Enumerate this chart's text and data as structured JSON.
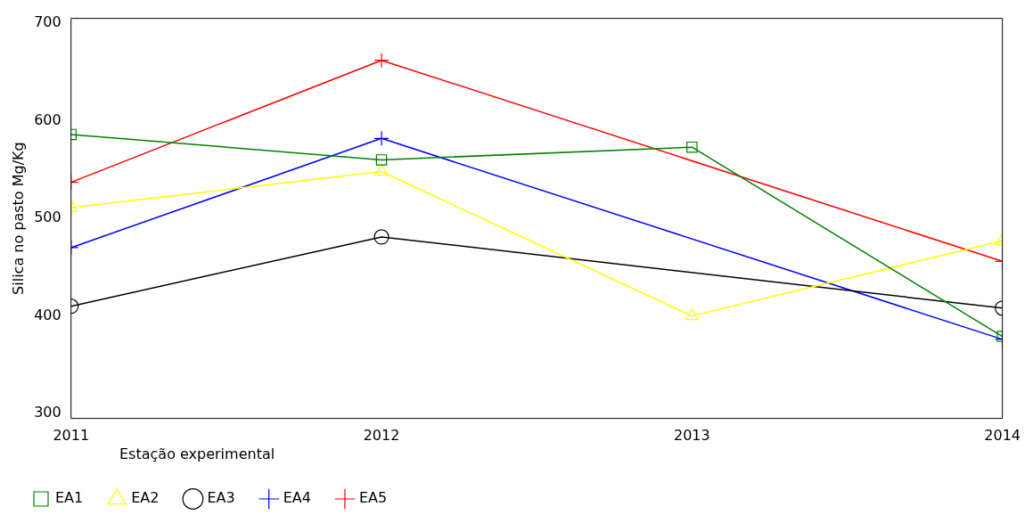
{
  "chart_data": {
    "type": "line",
    "ylabel": "Silica no pasto Mg/Kg",
    "legend_title": "Estação experimental",
    "legend": "bottom",
    "grid": false,
    "x": [
      2011,
      2012,
      2013,
      2014
    ],
    "xlim": [
      2011,
      2014
    ],
    "xticks": [
      2011,
      2012,
      2013,
      2014
    ],
    "ylim": [
      295,
      705
    ],
    "yticks": [
      300,
      400,
      500,
      600,
      700
    ],
    "series": [
      {
        "name": "EA1",
        "color": "#008000",
        "marker": "square",
        "values": [
          586,
          560,
          573,
          379
        ]
      },
      {
        "name": "EA2",
        "color": "#ffff00",
        "marker": "triangle",
        "values": [
          511,
          548,
          400,
          477
        ]
      },
      {
        "name": "EA3",
        "color": "#000000",
        "marker": "circle",
        "values": [
          410,
          481,
          null,
          408
        ]
      },
      {
        "name": "EA4",
        "color": "#0000ff",
        "marker": "cross",
        "values": [
          470,
          582,
          null,
          376
        ]
      },
      {
        "name": "EA5",
        "color": "#ff0000",
        "marker": "cross",
        "values": [
          537,
          662,
          null,
          456
        ]
      }
    ]
  }
}
